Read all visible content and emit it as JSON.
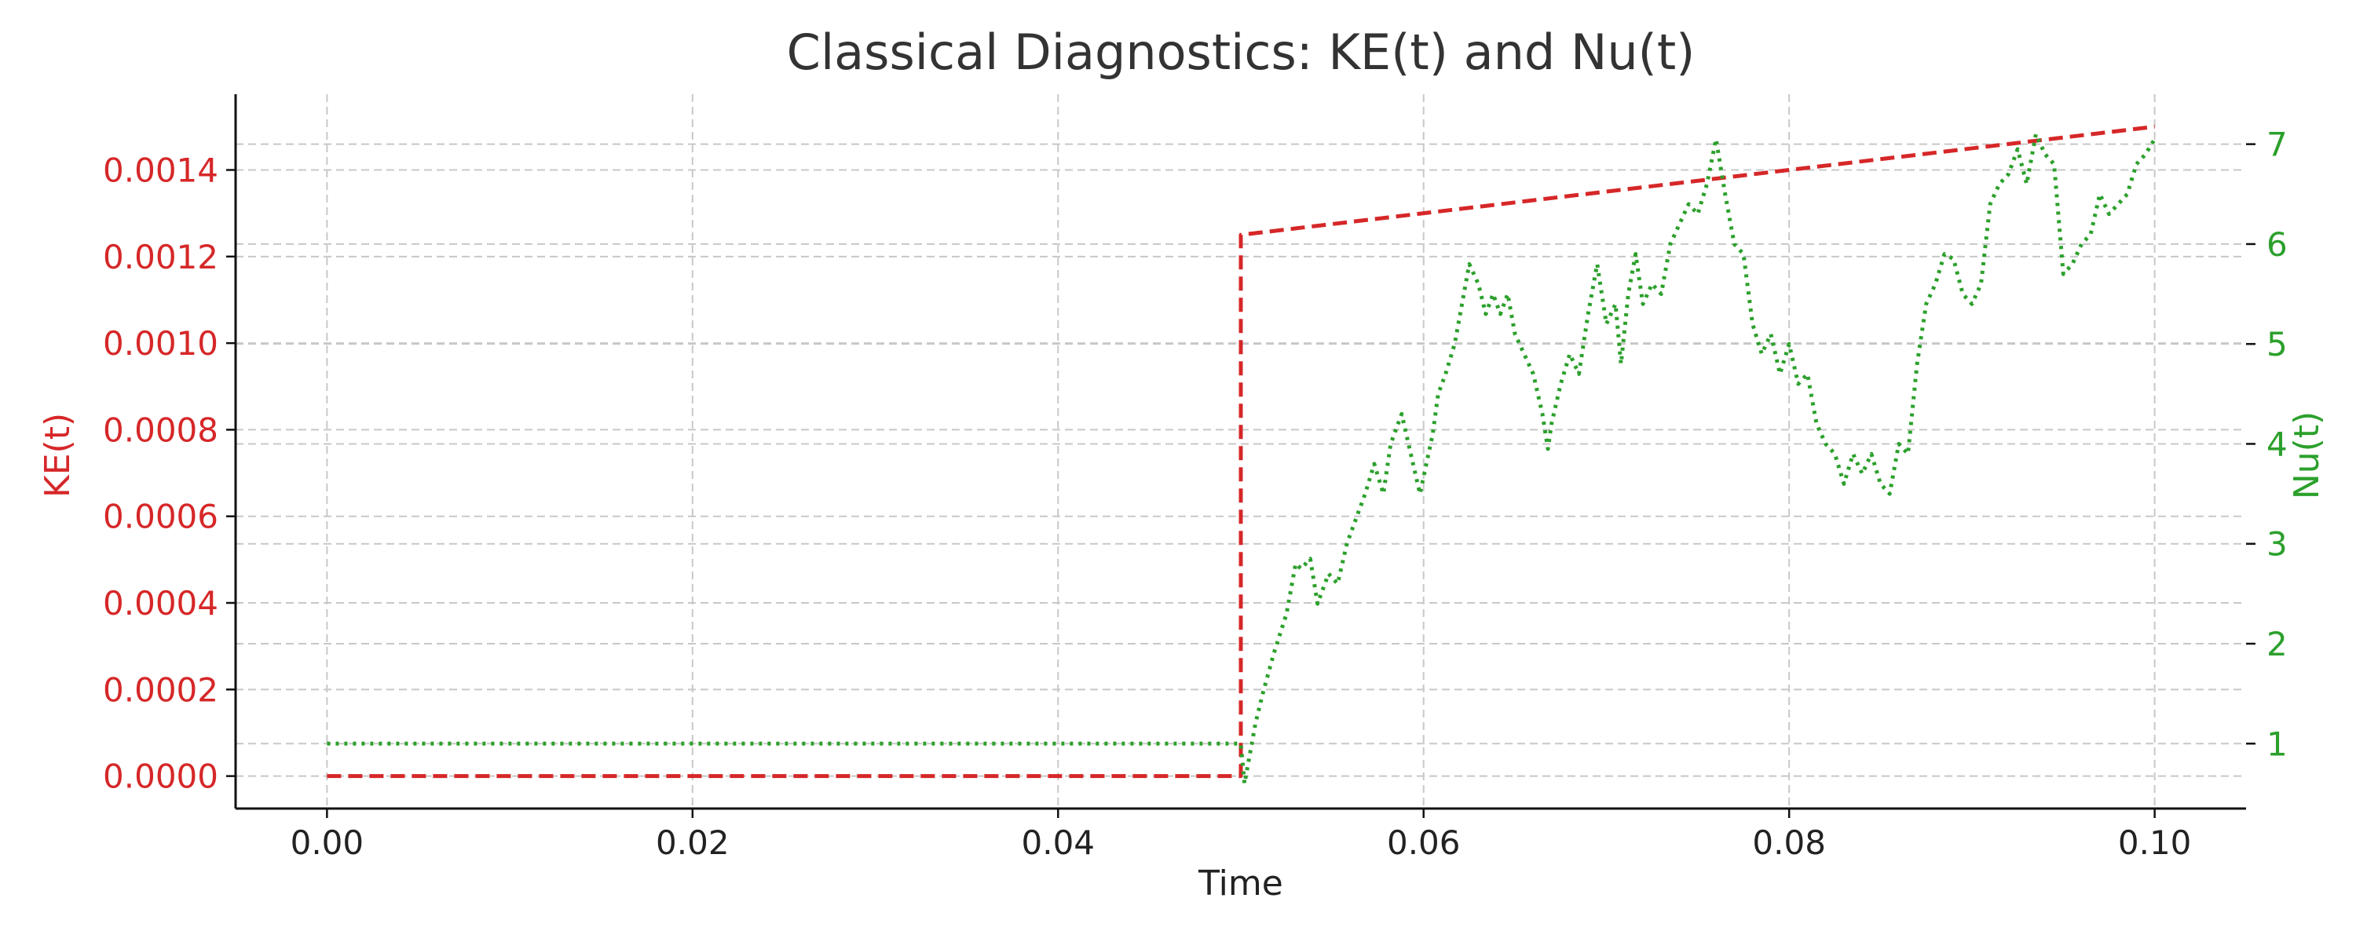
{
  "chart_data": {
    "type": "line",
    "title": "Classical Diagnostics: KE(t) and Nu(t)",
    "xlabel": "Time",
    "xlim": [
      -0.005,
      0.105
    ],
    "xticks": [
      0.0,
      0.02,
      0.04,
      0.06,
      0.08,
      0.1
    ],
    "x_tick_labels": [
      "0.00",
      "0.02",
      "0.04",
      "0.06",
      "0.08",
      "0.10"
    ],
    "grid": true,
    "legend": "none",
    "left_axis": {
      "label": "KE(t)",
      "color": "#d62728",
      "ylim": [
        -7.5e-05,
        0.001575
      ],
      "ticks": [
        0.0,
        0.0002,
        0.0004,
        0.0006,
        0.0008,
        0.001,
        0.0012,
        0.0014
      ],
      "tick_labels": [
        "0.0000",
        "0.0002",
        "0.0004",
        "0.0006",
        "0.0008",
        "0.0010",
        "0.0012",
        "0.0014"
      ]
    },
    "right_axis": {
      "label": "Nu(t)",
      "color": "#2ca02c",
      "ylim": [
        0.35,
        7.5
      ],
      "ticks": [
        1,
        2,
        3,
        4,
        5,
        6,
        7
      ],
      "tick_labels": [
        "1",
        "2",
        "3",
        "4",
        "5",
        "6",
        "7"
      ]
    },
    "series": [
      {
        "name": "KE(t)",
        "axis": "left",
        "style": "dashed",
        "color": "#d62728",
        "x": [
          0.0,
          0.05,
          0.05,
          0.1
        ],
        "y": [
          0.0,
          0.0,
          0.00125,
          0.0015
        ]
      },
      {
        "name": "Nu(t)",
        "axis": "right",
        "style": "dotted",
        "color": "#2ca02c",
        "x": [
          0.0,
          0.05,
          0.0502,
          0.0508,
          0.0512,
          0.0518,
          0.0525,
          0.053,
          0.0533,
          0.0538,
          0.0542,
          0.0548,
          0.0553,
          0.0558,
          0.0562,
          0.0568,
          0.0573,
          0.0578,
          0.0582,
          0.0588,
          0.0593,
          0.0598,
          0.0605,
          0.0608,
          0.0612,
          0.0617,
          0.062,
          0.0625,
          0.063,
          0.0634,
          0.0638,
          0.0642,
          0.0646,
          0.065,
          0.0655,
          0.066,
          0.0665,
          0.0668,
          0.067,
          0.0675,
          0.068,
          0.0685,
          0.069,
          0.0695,
          0.07,
          0.0705,
          0.0708,
          0.0712,
          0.0716,
          0.072,
          0.0725,
          0.073,
          0.0735,
          0.074,
          0.0745,
          0.075,
          0.0755,
          0.076,
          0.0765,
          0.077,
          0.0775,
          0.078,
          0.0785,
          0.079,
          0.0795,
          0.08,
          0.0805,
          0.081,
          0.0815,
          0.082,
          0.0825,
          0.083,
          0.0835,
          0.084,
          0.0845,
          0.085,
          0.0855,
          0.086,
          0.0865,
          0.087,
          0.0875,
          0.088,
          0.0885,
          0.089,
          0.0895,
          0.09,
          0.0905,
          0.091,
          0.0915,
          0.092,
          0.0925,
          0.093,
          0.0935,
          0.094,
          0.0945,
          0.095,
          0.0955,
          0.096,
          0.0965,
          0.097,
          0.0975,
          0.098,
          0.0985,
          0.099,
          0.0995,
          0.1
        ],
        "y": [
          1.0,
          1.0,
          0.6,
          1.2,
          1.5,
          1.9,
          2.3,
          2.8,
          2.75,
          2.85,
          2.4,
          2.7,
          2.6,
          3.0,
          3.2,
          3.5,
          3.8,
          3.5,
          4.0,
          4.3,
          3.9,
          3.5,
          4.1,
          4.5,
          4.7,
          5.0,
          5.3,
          5.8,
          5.6,
          5.3,
          5.5,
          5.3,
          5.5,
          5.1,
          4.9,
          4.7,
          4.3,
          3.95,
          4.2,
          4.6,
          4.9,
          4.7,
          5.3,
          5.8,
          5.2,
          5.4,
          4.8,
          5.5,
          5.9,
          5.4,
          5.6,
          5.5,
          6.0,
          6.2,
          6.4,
          6.3,
          6.6,
          7.05,
          6.5,
          6.0,
          5.9,
          5.2,
          4.9,
          5.1,
          4.7,
          5.0,
          4.6,
          4.7,
          4.2,
          4.0,
          3.9,
          3.6,
          3.9,
          3.7,
          3.9,
          3.6,
          3.5,
          4.0,
          3.9,
          4.8,
          5.4,
          5.6,
          5.9,
          5.85,
          5.5,
          5.4,
          5.6,
          6.4,
          6.6,
          6.7,
          6.95,
          6.6,
          7.1,
          6.9,
          6.8,
          5.7,
          5.8,
          6.0,
          6.1,
          6.5,
          6.3,
          6.4,
          6.5,
          6.8,
          6.9,
          7.05
        ]
      }
    ]
  }
}
